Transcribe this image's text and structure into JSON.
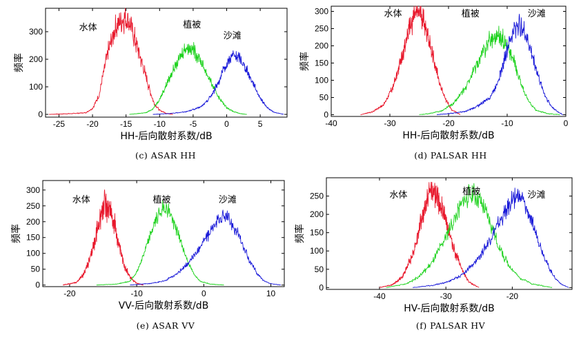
{
  "chart_data": [
    {
      "type": "line",
      "caption": "(c) ASAR HH",
      "xlabel": "HH-后向散射系数/dB",
      "ylabel": "频率",
      "xlim": [
        -27,
        9
      ],
      "ylim": [
        -10,
        385
      ],
      "xticks": [
        -25,
        -20,
        -15,
        -10,
        -5,
        0,
        5
      ],
      "yticks": [
        0,
        100,
        200,
        300
      ],
      "series": [
        {
          "name": "水体",
          "color": "#e8182c",
          "x_range": [
            -26.5,
            -8
          ],
          "points": [
            [
              -26.5,
              0
            ],
            [
              -23,
              3
            ],
            [
              -21,
              6
            ],
            [
              -20,
              22
            ],
            [
              -19,
              70
            ],
            [
              -18.2,
              170
            ],
            [
              -17.5,
              240
            ],
            [
              -16.8,
              300
            ],
            [
              -16,
              335
            ],
            [
              -15.2,
              350
            ],
            [
              -14.5,
              330
            ],
            [
              -13.8,
              280
            ],
            [
              -13,
              220
            ],
            [
              -12.2,
              150
            ],
            [
              -11.5,
              90
            ],
            [
              -10.8,
              40
            ],
            [
              -10,
              15
            ],
            [
              -9,
              4
            ],
            [
              -8,
              0
            ]
          ],
          "noise": 0.12
        },
        {
          "name": "植被",
          "color": "#1ed21e",
          "x_range": [
            -14.5,
            3
          ],
          "points": [
            [
              -14.5,
              0
            ],
            [
              -12,
              6
            ],
            [
              -11,
              20
            ],
            [
              -10,
              55
            ],
            [
              -9,
              105
            ],
            [
              -8,
              160
            ],
            [
              -7,
              205
            ],
            [
              -6.2,
              240
            ],
            [
              -5.5,
              245
            ],
            [
              -4.8,
              230
            ],
            [
              -4,
              200
            ],
            [
              -3,
              150
            ],
            [
              -2,
              100
            ],
            [
              -1,
              55
            ],
            [
              0,
              25
            ],
            [
              1,
              10
            ],
            [
              2,
              3
            ],
            [
              3,
              0
            ]
          ],
          "noise": 0.09
        },
        {
          "name": "沙滩",
          "color": "#1818d8",
          "x_range": [
            -11,
            8.5
          ],
          "points": [
            [
              -11,
              0
            ],
            [
              -8,
              4
            ],
            [
              -6,
              10
            ],
            [
              -4,
              25
            ],
            [
              -3,
              45
            ],
            [
              -2,
              80
            ],
            [
              -1,
              130
            ],
            [
              0,
              180
            ],
            [
              0.5,
              205
            ],
            [
              1,
              215
            ],
            [
              2,
              200
            ],
            [
              3,
              160
            ],
            [
              4,
              110
            ],
            [
              5,
              60
            ],
            [
              6,
              25
            ],
            [
              7,
              8
            ],
            [
              8.5,
              0
            ]
          ],
          "noise": 0.09
        }
      ],
      "annotations": [
        {
          "text": "水体",
          "x": -22,
          "y": 305
        },
        {
          "text": "植被",
          "x": -6.5,
          "y": 315
        },
        {
          "text": "沙滩",
          "x": -0.5,
          "y": 275
        }
      ]
    },
    {
      "type": "line",
      "caption": "(d) PALSAR HH",
      "xlabel": "HH-后向散射系数/dB",
      "ylabel": "频率",
      "xlim": [
        -40,
        0
      ],
      "ylim": [
        -5,
        315
      ],
      "xticks": [
        -40,
        -30,
        -20,
        -10,
        0
      ],
      "yticks": [
        0,
        50,
        100,
        150,
        200,
        250,
        300
      ],
      "series": [
        {
          "name": "水体",
          "color": "#e8182c",
          "x_range": [
            -35,
            -18
          ],
          "points": [
            [
              -35,
              0
            ],
            [
              -33,
              8
            ],
            [
              -31,
              30
            ],
            [
              -29.5,
              80
            ],
            [
              -28,
              160
            ],
            [
              -27,
              230
            ],
            [
              -26,
              280
            ],
            [
              -25.3,
              300
            ],
            [
              -24.5,
              285
            ],
            [
              -23.5,
              230
            ],
            [
              -22.5,
              160
            ],
            [
              -21.5,
              90
            ],
            [
              -20.5,
              45
            ],
            [
              -19.5,
              15
            ],
            [
              -18,
              0
            ]
          ],
          "noise": 0.1
        },
        {
          "name": "植被",
          "color": "#1ed21e",
          "x_range": [
            -25,
            -1
          ],
          "points": [
            [
              -25,
              0
            ],
            [
              -23,
              4
            ],
            [
              -21,
              12
            ],
            [
              -19,
              35
            ],
            [
              -17,
              80
            ],
            [
              -15.5,
              135
            ],
            [
              -14,
              185
            ],
            [
              -13,
              215
            ],
            [
              -12,
              230
            ],
            [
              -11,
              225
            ],
            [
              -10,
              200
            ],
            [
              -9,
              160
            ],
            [
              -8,
              110
            ],
            [
              -7,
              60
            ],
            [
              -6,
              30
            ],
            [
              -5,
              12
            ],
            [
              -3,
              3
            ],
            [
              -1,
              0
            ]
          ],
          "noise": 0.1
        },
        {
          "name": "沙滩",
          "color": "#1818d8",
          "x_range": [
            -22,
            -0.5
          ],
          "points": [
            [
              -22,
              0
            ],
            [
              -19,
              5
            ],
            [
              -17,
              10
            ],
            [
              -15,
              25
            ],
            [
              -13,
              50
            ],
            [
              -12,
              80
            ],
            [
              -11,
              130
            ],
            [
              -10,
              190
            ],
            [
              -9,
              240
            ],
            [
              -8.2,
              265
            ],
            [
              -7.5,
              255
            ],
            [
              -6.5,
              215
            ],
            [
              -5.5,
              160
            ],
            [
              -4.5,
              100
            ],
            [
              -3.5,
              55
            ],
            [
              -2.5,
              25
            ],
            [
              -1.5,
              10
            ],
            [
              -0.5,
              0
            ]
          ],
          "noise": 0.1
        }
      ],
      "annotations": [
        {
          "text": "水体",
          "x": -31,
          "y": 285
        },
        {
          "text": "植被",
          "x": -17.8,
          "y": 285
        },
        {
          "text": "沙滩",
          "x": -6.5,
          "y": 285
        }
      ]
    },
    {
      "type": "line",
      "caption": "(e) ASAR VV",
      "xlabel": "VV-后向散射系数/dB",
      "ylabel": "频率",
      "xlim": [
        -24,
        12
      ],
      "ylim": [
        -5,
        330
      ],
      "xticks": [
        -20,
        -10,
        0,
        10
      ],
      "yticks": [
        0,
        50,
        100,
        150,
        200,
        250,
        300
      ],
      "series": [
        {
          "name": "水体",
          "color": "#e8182c",
          "x_range": [
            -21,
            -9
          ],
          "points": [
            [
              -21,
              0
            ],
            [
              -19,
              8
            ],
            [
              -18,
              30
            ],
            [
              -17,
              80
            ],
            [
              -16,
              160
            ],
            [
              -15.3,
              230
            ],
            [
              -14.7,
              260
            ],
            [
              -14,
              240
            ],
            [
              -13.2,
              180
            ],
            [
              -12.5,
              110
            ],
            [
              -11.8,
              60
            ],
            [
              -11,
              25
            ],
            [
              -10,
              6
            ],
            [
              -9,
              0
            ]
          ],
          "noise": 0.15
        },
        {
          "name": "植被",
          "color": "#1ed21e",
          "x_range": [
            -16,
            3
          ],
          "points": [
            [
              -16,
              0
            ],
            [
              -13,
              3
            ],
            [
              -11,
              12
            ],
            [
              -10,
              40
            ],
            [
              -9,
              95
            ],
            [
              -8,
              155
            ],
            [
              -7,
              215
            ],
            [
              -6,
              245
            ],
            [
              -5.2,
              235
            ],
            [
              -4.5,
              200
            ],
            [
              -3.5,
              140
            ],
            [
              -2.5,
              80
            ],
            [
              -1.5,
              35
            ],
            [
              -0.5,
              12
            ],
            [
              1,
              3
            ],
            [
              3,
              0
            ]
          ],
          "noise": 0.08
        },
        {
          "name": "沙滩",
          "color": "#1818d8",
          "x_range": [
            -11,
            11.5
          ],
          "points": [
            [
              -11,
              0
            ],
            [
              -8,
              5
            ],
            [
              -6,
              12
            ],
            [
              -4,
              35
            ],
            [
              -2,
              75
            ],
            [
              0,
              140
            ],
            [
              1.5,
              185
            ],
            [
              2.5,
              210
            ],
            [
              3.2,
              215
            ],
            [
              4,
              200
            ],
            [
              5,
              165
            ],
            [
              6,
              115
            ],
            [
              7,
              70
            ],
            [
              8,
              35
            ],
            [
              9,
              12
            ],
            [
              10,
              4
            ],
            [
              11.5,
              0
            ]
          ],
          "noise": 0.09
        }
      ],
      "annotations": [
        {
          "text": "水体",
          "x": -19.6,
          "y": 260
        },
        {
          "text": "植被",
          "x": -7.6,
          "y": 260
        },
        {
          "text": "沙滩",
          "x": 2.2,
          "y": 260
        }
      ]
    },
    {
      "type": "line",
      "caption": "(f) PALSAR HV",
      "xlabel": "HV-后向散射系数/dB",
      "ylabel": "频率",
      "xlim": [
        -48,
        -11
      ],
      "ylim": [
        -5,
        300
      ],
      "xticks": [
        -40,
        -30,
        -20
      ],
      "yticks": [
        0,
        50,
        100,
        150,
        200,
        250
      ],
      "series": [
        {
          "name": "水体",
          "color": "#e8182c",
          "x_range": [
            -40,
            -25
          ],
          "points": [
            [
              -40,
              0
            ],
            [
              -38,
              8
            ],
            [
              -36.5,
              30
            ],
            [
              -35,
              90
            ],
            [
              -34,
              160
            ],
            [
              -33,
              230
            ],
            [
              -32.3,
              265
            ],
            [
              -31.5,
              255
            ],
            [
              -30.5,
              210
            ],
            [
              -29.5,
              150
            ],
            [
              -28.5,
              90
            ],
            [
              -27.5,
              45
            ],
            [
              -26.5,
              15
            ],
            [
              -25,
              0
            ]
          ],
          "noise": 0.12
        },
        {
          "name": "植被",
          "color": "#1ed21e",
          "x_range": [
            -39,
            -14
          ],
          "points": [
            [
              -39,
              0
            ],
            [
              -36,
              10
            ],
            [
              -34,
              30
            ],
            [
              -32,
              70
            ],
            [
              -30.5,
              120
            ],
            [
              -29,
              175
            ],
            [
              -28,
              215
            ],
            [
              -27,
              245
            ],
            [
              -26,
              255
            ],
            [
              -25,
              240
            ],
            [
              -24,
              205
            ],
            [
              -23,
              160
            ],
            [
              -22,
              110
            ],
            [
              -20.5,
              60
            ],
            [
              -19,
              28
            ],
            [
              -17,
              10
            ],
            [
              -14,
              0
            ]
          ],
          "noise": 0.1
        },
        {
          "name": "沙滩",
          "color": "#1818d8",
          "x_range": [
            -35,
            -11.5
          ],
          "points": [
            [
              -35,
              0
            ],
            [
              -32,
              6
            ],
            [
              -30,
              14
            ],
            [
              -28,
              30
            ],
            [
              -26,
              60
            ],
            [
              -24,
              110
            ],
            [
              -22.5,
              160
            ],
            [
              -21,
              210
            ],
            [
              -20,
              240
            ],
            [
              -19.2,
              250
            ],
            [
              -18.3,
              235
            ],
            [
              -17.5,
              200
            ],
            [
              -16.5,
              150
            ],
            [
              -15.5,
              100
            ],
            [
              -14.5,
              55
            ],
            [
              -13.5,
              25
            ],
            [
              -12.5,
              8
            ],
            [
              -11.5,
              0
            ]
          ],
          "noise": 0.09
        }
      ],
      "annotations": [
        {
          "text": "水体",
          "x": -38.5,
          "y": 245
        },
        {
          "text": "植被",
          "x": -27.5,
          "y": 255
        },
        {
          "text": "沙滩",
          "x": -17.7,
          "y": 245
        }
      ]
    }
  ]
}
